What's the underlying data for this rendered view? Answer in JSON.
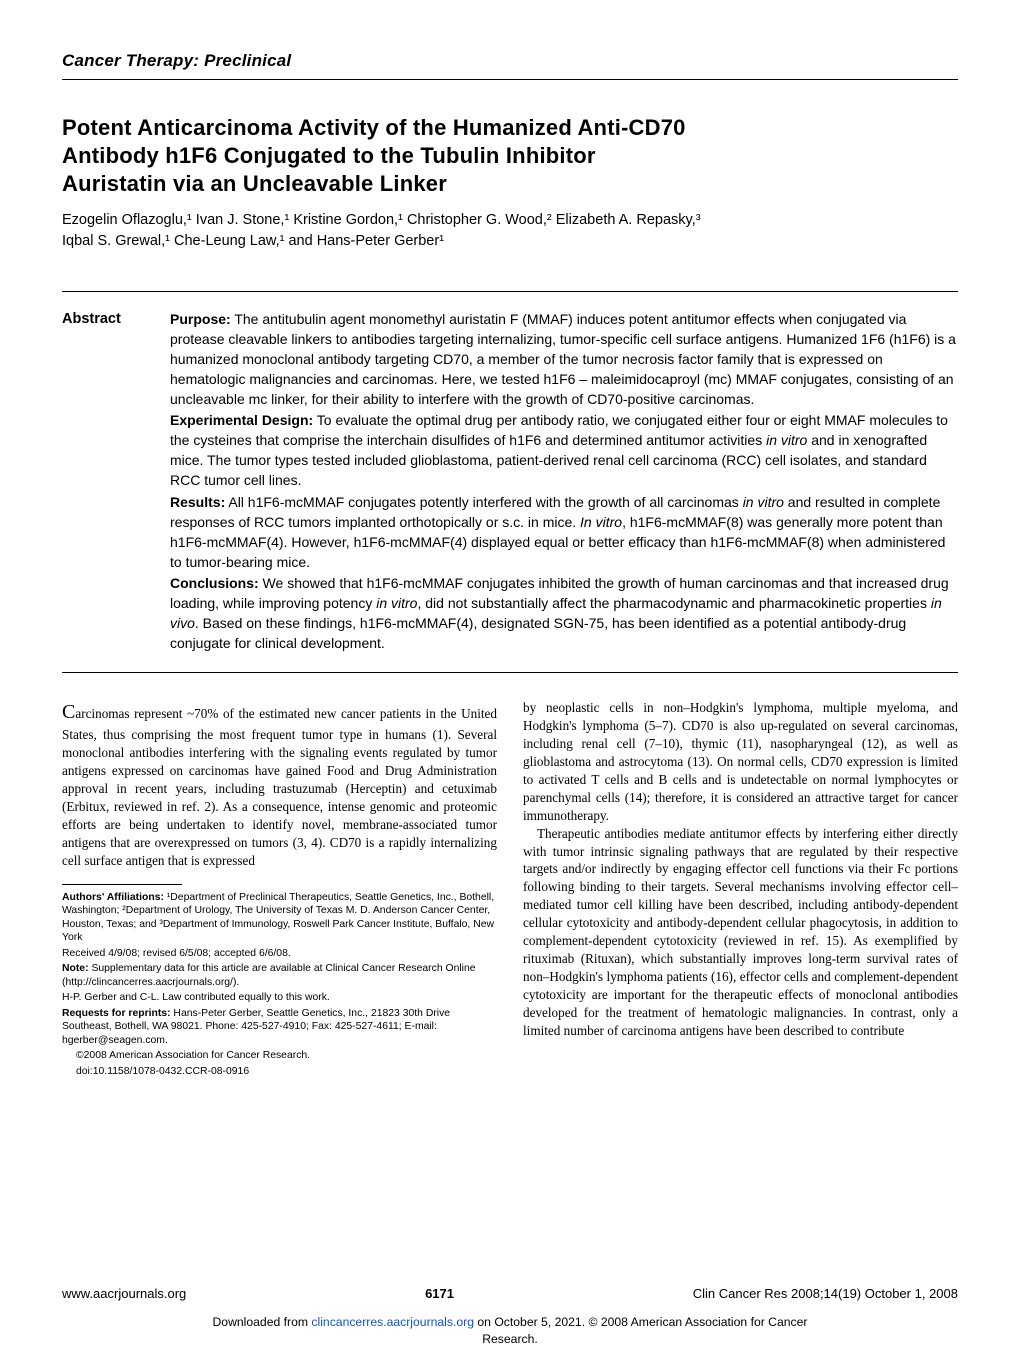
{
  "section_header": "Cancer Therapy: Preclinical",
  "title_l1": "Potent Anticarcinoma Activity of the Humanized Anti-CD70",
  "title_l2": "Antibody h1F6 Conjugated to the Tubulin Inhibitor",
  "title_l3": "Auristatin via an Uncleavable Linker",
  "authors_l1": "Ezogelin Oflazoglu,¹ Ivan J. Stone,¹ Kristine Gordon,¹ Christopher G. Wood,² Elizabeth A. Repasky,³",
  "authors_l2": "Iqbal S. Grewal,¹ Che-Leung Law,¹ and Hans-Peter Gerber¹",
  "abstract_label": "Abstract",
  "abs_purpose_h": "Purpose:",
  "abs_purpose": " The antitubulin agent monomethyl auristatin F (MMAF) induces potent antitumor effects when conjugated via protease cleavable linkers to antibodies targeting internalizing, tumor-specific cell surface antigens. Humanized 1F6 (h1F6) is a humanized monoclonal antibody targeting CD70, a member of the tumor necrosis factor family that is expressed on hematologic malignancies and carcinomas. Here, we tested h1F6 – maleimidocaproyl (mc) MMAF conjugates, consisting of an uncleavable mc linker, for their ability to interfere with the growth of CD70-positive carcinomas.",
  "abs_design_h": "Experimental Design:",
  "abs_design": " To evaluate the optimal drug per antibody ratio, we conjugated either four or eight MMAF molecules to the cysteines that comprise the interchain disulfides of h1F6 and determined antitumor activities ",
  "abs_design_it": "in vitro",
  "abs_design_2": " and in xenografted mice. The tumor types tested included glioblastoma, patient-derived renal cell carcinoma (RCC) cell isolates, and standard RCC tumor cell lines.",
  "abs_results_h": "Results:",
  "abs_results_1": " All h1F6-mcMMAF conjugates potently interfered with the growth of all carcinomas ",
  "abs_results_it1": "in vitro",
  "abs_results_2": " and resulted in complete responses of RCC tumors implanted orthotopically or s.c. in mice. ",
  "abs_results_it2": "In vitro",
  "abs_results_3": ", h1F6-mcMMAF(8) was generally more potent than h1F6-mcMMAF(4). However, h1F6-mcMMAF(4) displayed equal or better efficacy than h1F6-mcMMAF(8) when administered to tumor-bearing mice.",
  "abs_conc_h": "Conclusions:",
  "abs_conc_1": " We showed that h1F6-mcMMAF conjugates inhibited the growth of human carcinomas and that increased drug loading, while improving potency ",
  "abs_conc_it1": "in vitro",
  "abs_conc_2": ", did not substantially affect the pharmacodynamic and pharmacokinetic properties ",
  "abs_conc_it2": "in vivo",
  "abs_conc_3": ". Based on these findings, h1F6-mcMMAF(4), designated SGN-75, has been identified as a potential antibody-drug conjugate for clinical development.",
  "body_p1": "arcinomas represent ~70% of the estimated new cancer patients in the United States, thus comprising the most frequent tumor type in humans (1). Several monoclonal antibodies interfering with the signaling events regulated by tumor antigens expressed on carcinomas have gained Food and Drug Administration approval in recent years, including trastuzumab (Herceptin) and cetuximab (Erbitux, reviewed in ref. 2). As a consequence, intense genomic and proteomic efforts are being undertaken to identify novel, membrane-associated tumor antigens that are overexpressed on tumors (3, 4). CD70 is a rapidly internalizing cell surface antigen that is expressed",
  "body_p2": "by neoplastic cells in non–Hodgkin's lymphoma, multiple myeloma, and Hodgkin's lymphoma (5–7). CD70 is also up-regulated on several carcinomas, including renal cell (7–10), thymic (11), nasopharyngeal (12), as well as glioblastoma and astrocytoma (13). On normal cells, CD70 expression is limited to activated T cells and B cells and is undetectable on normal lymphocytes or parenchymal cells (14); therefore, it is considered an attractive target for cancer immunotherapy.",
  "body_p3": "Therapeutic antibodies mediate antitumor effects by interfering either directly with tumor intrinsic signaling pathways that are regulated by their respective targets and/or indirectly by engaging effector cell functions via their Fc portions following binding to their targets. Several mechanisms involving effector cell–mediated tumor cell killing have been described, including antibody-dependent cellular cytotoxicity and antibody-dependent cellular phagocytosis, in addition to complement-dependent cytotoxicity (reviewed in ref. 15). As exemplified by rituximab (Rituxan), which substantially improves long-term survival rates of non–Hodgkin's lymphoma patients (16), effector cells and complement-dependent cytotoxicity are important for the therapeutic effects of monoclonal antibodies developed for the treatment of hematologic malignancies. In contrast, only a limited number of carcinoma antigens have been described to contribute",
  "fn_affil_label": "Authors' Affiliations:",
  "fn_affil": " ¹Department of Preclinical Therapeutics, Seattle Genetics, Inc., Bothell, Washington; ²Department of Urology, The University of Texas M. D. Anderson Cancer Center, Houston, Texas; and ³Department of Immunology, Roswell Park Cancer Institute, Buffalo, New York",
  "fn_received": "Received 4/9/08; revised 6/5/08; accepted 6/6/08.",
  "fn_note_label": "Note:",
  "fn_note": " Supplementary data for this article are available at Clinical Cancer Research Online (http://clincancerres.aacrjournals.org/).",
  "fn_contrib": "H-P. Gerber and C-L. Law contributed equally to this work.",
  "fn_reprints_label": "Requests for reprints:",
  "fn_reprints": " Hans-Peter Gerber, Seattle Genetics, Inc., 21823 30th Drive Southeast, Bothell, WA 98021. Phone: 425-527-4910; Fax: 425-527-4611; E-mail: hgerber@seagen.com.",
  "fn_copyright": "©2008 American Association for Cancer Research.",
  "fn_doi": "doi:10.1158/1078-0432.CCR-08-0916",
  "footer_url": "www.aacrjournals.org",
  "footer_page": "6171",
  "footer_citation": "Clin Cancer Res 2008;14(19) October 1, 2008",
  "dl_1": "Downloaded from ",
  "dl_link": "clincancerres.aacrjournals.org",
  "dl_2": " on October 5, 2021. © 2008 American Association for Cancer",
  "dl_3": "Research."
}
